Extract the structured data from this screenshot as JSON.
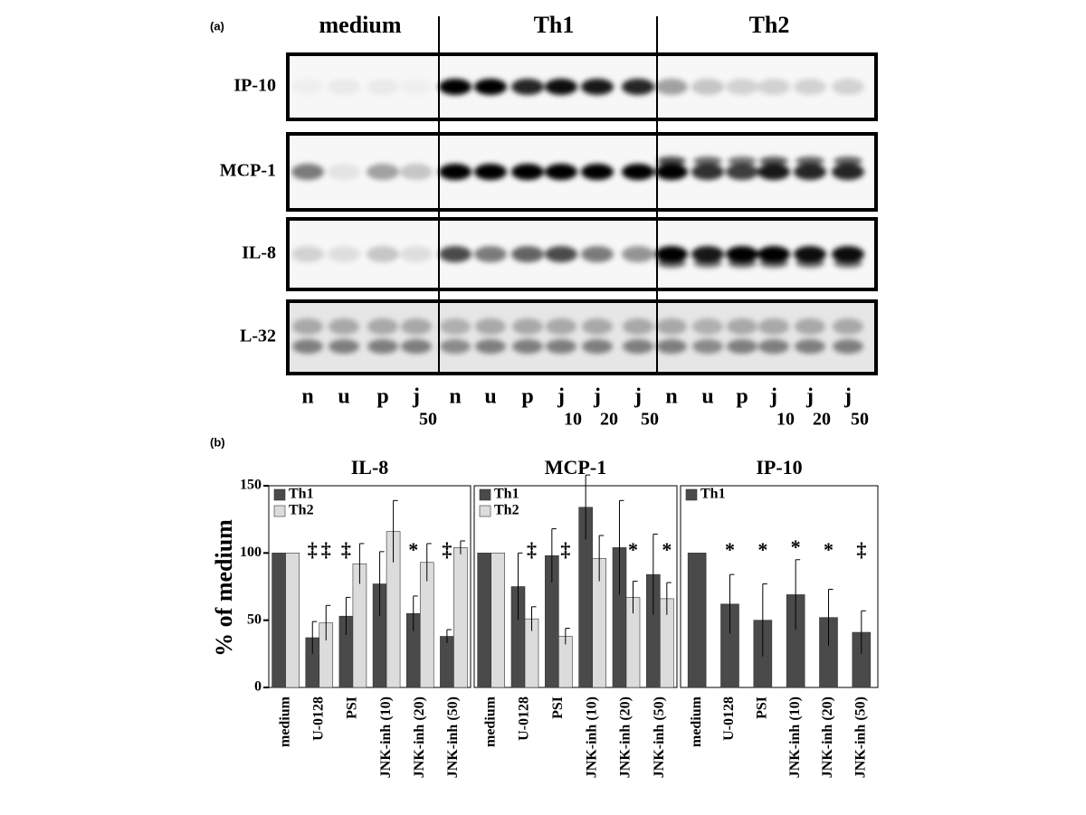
{
  "panel_labels": [
    "(a)",
    "(b)"
  ],
  "blot": {
    "groups": [
      "medium",
      "Th1",
      "Th2"
    ],
    "rows": [
      "IP-10",
      "MCP-1",
      "IL-8",
      "L-32"
    ],
    "lanes": [
      "n",
      "u",
      "p",
      "j",
      "n",
      "u",
      "p",
      "j",
      "j",
      "j",
      "n",
      "u",
      "p",
      "j",
      "j",
      "j"
    ],
    "lane_doses": [
      null,
      null,
      null,
      "50",
      null,
      null,
      null,
      "10",
      "20",
      "50",
      null,
      null,
      null,
      "10",
      "20",
      "50"
    ]
  },
  "chart_data": [
    {
      "type": "bar",
      "title": "IL-8",
      "ylabel": "% of medium",
      "categories": [
        "medium",
        "U-0128",
        "PSI",
        "JNK-inh (10)",
        "JNK-inh (20)",
        "JNK-inh (50)"
      ],
      "ylim": [
        0,
        150
      ],
      "yticks": [
        0,
        50,
        100,
        150
      ],
      "legend": "upper left",
      "series": [
        {
          "name": "Th1",
          "color": "#4a4a4a",
          "values": [
            100,
            37,
            53,
            77,
            55,
            38
          ],
          "errors": [
            null,
            12,
            14,
            24,
            13,
            5
          ],
          "markers": [
            null,
            "‡",
            "‡",
            null,
            "*",
            "‡"
          ]
        },
        {
          "name": "Th2",
          "color": "#dcdcdc",
          "values": [
            100,
            48,
            92,
            116,
            93,
            104
          ],
          "errors": [
            null,
            13,
            15,
            23,
            14,
            5
          ],
          "markers": [
            null,
            "‡",
            null,
            null,
            null,
            null
          ]
        }
      ]
    },
    {
      "type": "bar",
      "title": "MCP-1",
      "categories": [
        "medium",
        "U-0128",
        "PSI",
        "JNK-inh (10)",
        "JNK-inh (20)",
        "JNK-inh (50)"
      ],
      "ylim": [
        0,
        150
      ],
      "legend": "upper left",
      "series": [
        {
          "name": "Th1",
          "color": "#4a4a4a",
          "values": [
            100,
            75,
            98,
            134,
            104,
            84
          ],
          "errors": [
            null,
            25,
            20,
            24,
            35,
            30
          ],
          "markers": [
            null,
            null,
            null,
            null,
            null,
            null
          ]
        },
        {
          "name": "Th2",
          "color": "#dcdcdc",
          "values": [
            100,
            51,
            38,
            96,
            67,
            66
          ],
          "errors": [
            null,
            9,
            6,
            17,
            12,
            12
          ],
          "markers": [
            null,
            "‡",
            "‡",
            null,
            "*",
            "*"
          ]
        }
      ]
    },
    {
      "type": "bar",
      "title": "IP-10",
      "categories": [
        "medium",
        "U-0128",
        "PSI",
        "JNK-inh (10)",
        "JNK-inh (20)",
        "JNK-inh (50)"
      ],
      "ylim": [
        0,
        150
      ],
      "legend": "upper left",
      "series": [
        {
          "name": "Th1",
          "color": "#4a4a4a",
          "values": [
            100,
            62,
            50,
            69,
            52,
            41
          ],
          "errors": [
            null,
            22,
            27,
            26,
            21,
            16
          ],
          "markers": [
            null,
            "*",
            "*",
            "*",
            "*",
            "‡"
          ]
        }
      ]
    }
  ]
}
